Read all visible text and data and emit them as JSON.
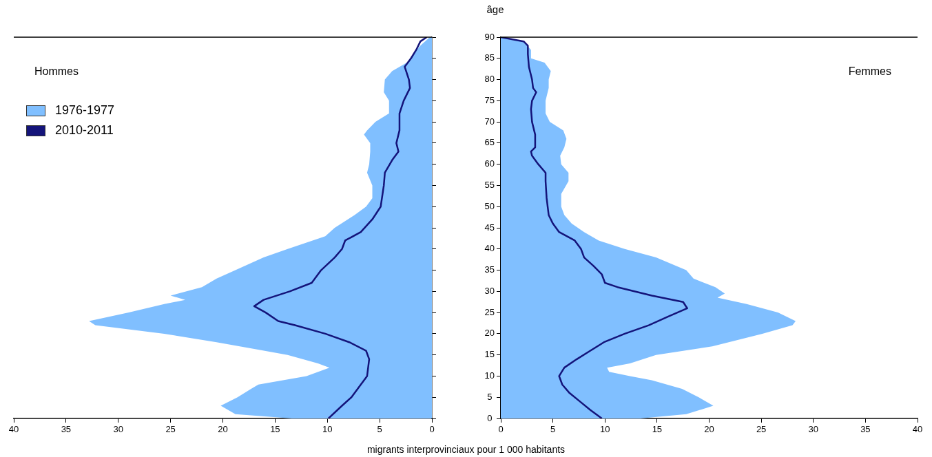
{
  "chart_data": [
    {
      "type": "area",
      "title": "Hommes",
      "xlabel": "migrants interprovinciaux pour 1 000 habitants",
      "orientation": "horizontal",
      "xlim": [
        40,
        0
      ],
      "xticks": [
        40,
        35,
        30,
        25,
        20,
        15,
        10,
        5,
        0
      ],
      "ylim": [
        0,
        90
      ],
      "yticks": [
        0,
        5,
        10,
        15,
        20,
        25,
        30,
        35,
        40,
        45,
        50,
        55,
        60,
        65,
        70,
        75,
        80,
        85,
        90
      ],
      "tick_labels": "x",
      "legend": "top left",
      "series": [
        {
          "name": "1976-1977",
          "color": "#80bfff",
          "x": [
            0,
            1,
            3,
            5,
            7,
            8,
            10,
            12,
            13,
            15,
            18,
            20,
            22,
            23,
            25,
            27,
            28,
            29,
            31,
            33,
            35,
            38,
            40,
            43,
            45,
            48,
            50,
            52,
            55,
            58,
            60,
            63,
            65,
            67,
            68,
            70,
            72,
            75,
            77,
            80,
            82,
            84,
            86,
            88,
            90
          ],
          "values": [
            13.4,
            18.8,
            20.2,
            18.6,
            17.3,
            16.6,
            12,
            9.8,
            10.9,
            13.8,
            20.6,
            25.6,
            32.2,
            32.8,
            29,
            25.6,
            23.6,
            25,
            22,
            20.6,
            18.8,
            16.1,
            13.8,
            10.2,
            9.3,
            7.4,
            6.3,
            5.7,
            5.7,
            6.2,
            6,
            5.9,
            5.9,
            6.5,
            6.2,
            5.4,
            4.1,
            4.1,
            4.6,
            4.5,
            3.8,
            2.4,
            1.8,
            1.1,
            0.2
          ]
        },
        {
          "name": "2010-2011",
          "type": "line",
          "color": "#14147a",
          "x": [
            0,
            3,
            5,
            8,
            10,
            12,
            14,
            16,
            18,
            20,
            22,
            23,
            25,
            26.5,
            28,
            30,
            32,
            35,
            38,
            40,
            42,
            44,
            47,
            50,
            55,
            58,
            61,
            63,
            65,
            68,
            72,
            75,
            78,
            80,
            83,
            85,
            87,
            89,
            90
          ],
          "values": [
            9.9,
            8.6,
            7.7,
            6.8,
            6.2,
            6.1,
            6,
            6.3,
            7.9,
            10.2,
            13.1,
            14.7,
            15.9,
            17,
            16.1,
            13.6,
            11.5,
            10.6,
            9.3,
            8.6,
            8.3,
            6.8,
            5.7,
            4.9,
            4.6,
            4.5,
            3.8,
            3.2,
            3.4,
            3.1,
            3.1,
            2.7,
            2.1,
            2.2,
            2.6,
            2,
            1.5,
            1.1,
            0.5
          ]
        }
      ]
    },
    {
      "type": "area",
      "title": "Femmes",
      "ylabel": "âge",
      "orientation": "horizontal",
      "xlim": [
        0,
        40
      ],
      "xticks": [
        0,
        5,
        10,
        15,
        20,
        25,
        30,
        35,
        40
      ],
      "ylim": [
        0,
        90
      ],
      "yticks": [
        0,
        5,
        10,
        15,
        20,
        25,
        30,
        35,
        40,
        45,
        50,
        55,
        60,
        65,
        70,
        75,
        80,
        85,
        90
      ],
      "series": [
        {
          "color": "#80bfff",
          "x": [
            0,
            1,
            3,
            5,
            7,
            9,
            10,
            11,
            12,
            13,
            15,
            17,
            20,
            22,
            23,
            25,
            27,
            28.5,
            29.5,
            31,
            33,
            35,
            38,
            40,
            42,
            44,
            46,
            48,
            50,
            53,
            56,
            58,
            60,
            62,
            64,
            66,
            68,
            70,
            72,
            75,
            78,
            80,
            82,
            84,
            85,
            87,
            89,
            90
          ],
          "values": [
            13.4,
            17.8,
            20.4,
            19,
            17.4,
            14.5,
            12.4,
            10.4,
            10.2,
            12.4,
            14.9,
            20.3,
            25.1,
            28,
            28.3,
            26.6,
            23.6,
            20.8,
            21.5,
            20.6,
            18.5,
            17.8,
            14.9,
            11.9,
            9.4,
            8,
            6.8,
            6.1,
            5.8,
            5.8,
            6.5,
            6.5,
            5.8,
            5.7,
            6.1,
            6.3,
            6,
            4.7,
            4.3,
            4.3,
            4.6,
            4.6,
            4.8,
            4.2,
            2.9,
            2.9,
            2.2,
            0.3
          ]
        },
        {
          "type": "line",
          "color": "#14147a",
          "x": [
            0,
            2,
            4,
            6,
            8,
            10,
            12,
            14,
            16,
            18,
            20,
            22,
            24,
            26,
            27.5,
            29,
            31,
            32,
            34,
            36,
            38,
            40,
            42,
            44,
            46,
            48,
            52,
            56,
            58,
            60,
            62,
            63,
            64,
            67,
            70,
            73,
            75,
            77,
            78,
            80,
            83,
            86,
            88,
            89,
            90
          ],
          "values": [
            9.7,
            8.6,
            7.6,
            6.6,
            5.9,
            5.6,
            6.1,
            7.3,
            8.6,
            9.9,
            11.9,
            14.2,
            16,
            17.9,
            17.5,
            14.5,
            11.2,
            10,
            9.7,
            8.9,
            8,
            7.7,
            7.1,
            5.6,
            5,
            4.6,
            4.4,
            4.3,
            4.3,
            3.6,
            3,
            2.9,
            3.3,
            3.3,
            3,
            2.9,
            3,
            3.4,
            3.1,
            3,
            2.7,
            2.6,
            2.6,
            2.2,
            0
          ]
        }
      ]
    }
  ]
}
